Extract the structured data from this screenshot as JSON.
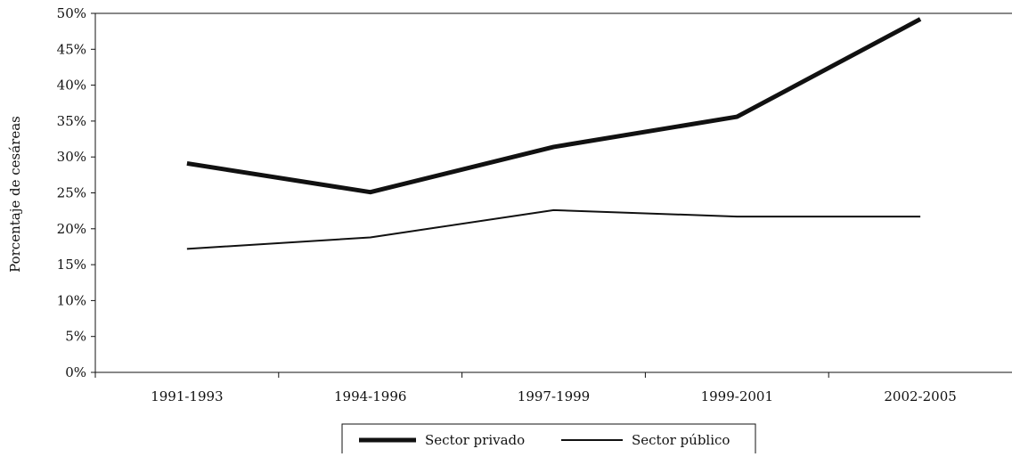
{
  "chart_data": {
    "type": "line",
    "title": "",
    "xlabel": "",
    "ylabel": "Porcentaje de cesáreas",
    "categories": [
      "1991-1993",
      "1994-1996",
      "1997-1999",
      "1999-2001",
      "2002-2005"
    ],
    "y_tick_labels": [
      "0%",
      "5%",
      "10%",
      "15%",
      "20%",
      "25%",
      "30%",
      "35%",
      "40%",
      "45%",
      "50%"
    ],
    "ylim": [
      0,
      50
    ],
    "y_unit": "percent",
    "grid": false,
    "legend_position": "bottom",
    "series": [
      {
        "name": "Sector privado",
        "values": [
          29.1,
          25.1,
          31.4,
          35.6,
          49.2
        ],
        "style": "thick",
        "color": "#111111"
      },
      {
        "name": "Sector público",
        "values": [
          17.2,
          18.8,
          22.6,
          21.7,
          21.7
        ],
        "style": "thin",
        "color": "#111111"
      }
    ]
  }
}
